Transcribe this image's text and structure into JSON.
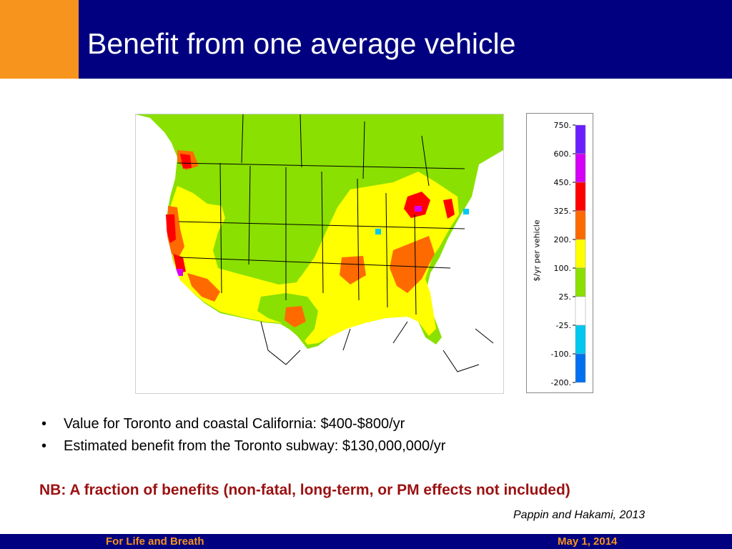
{
  "slide": {
    "title": "Benefit from one average vehicle",
    "bullets": [
      "Value for Toronto and coastal California: $400-$800/yr",
      "Estimated benefit from the Toronto subway: $130,000,000/yr"
    ],
    "nb": "NB: A fraction of benefits (non-fatal, long-term, or PM effects not included)",
    "citation": "Pappin and Hakami, 2013",
    "footer_left": "For Life and Breath",
    "footer_right": "May 1, 2014"
  },
  "colors": {
    "orange": "#f7941d",
    "navy": "#000080",
    "nb_red": "#9b1111"
  },
  "legend": {
    "axis_label": "$/yr per vehicle",
    "ticks": [
      "750.",
      "600.",
      "450.",
      "325.",
      "200.",
      "100.",
      "25.",
      "-25.",
      "-100.",
      "-200."
    ],
    "bands": [
      {
        "from": "600.",
        "to": "750.",
        "color": "#6a1eff"
      },
      {
        "from": "450.",
        "to": "600.",
        "color": "#d400f5"
      },
      {
        "from": "325.",
        "to": "450.",
        "color": "#ff0000"
      },
      {
        "from": "200.",
        "to": "325.",
        "color": "#ff6a00"
      },
      {
        "from": "100.",
        "to": "200.",
        "color": "#ffff00"
      },
      {
        "from": "25.",
        "to": "100.",
        "color": "#8ae000"
      },
      {
        "from": "-25.",
        "to": "25.",
        "color": "#ffffff"
      },
      {
        "from": "-100.",
        "to": "-25.",
        "color": "#00c8f0"
      },
      {
        "from": "-200.",
        "to": "-100.",
        "color": "#0070f0"
      }
    ]
  },
  "map_colors": {
    "green": "#8ae000",
    "yellow": "#ffff00",
    "orange": "#ff6a00",
    "red": "#ff0000",
    "magenta": "#d400f5",
    "cyan": "#00c8f0",
    "boundary": "#000000"
  }
}
